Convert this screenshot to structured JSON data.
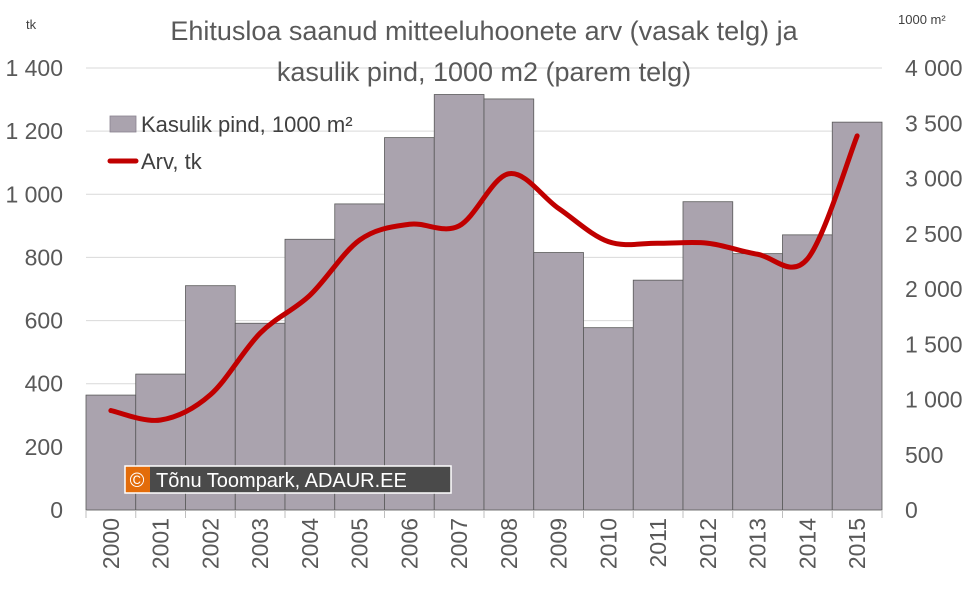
{
  "chart_data": {
    "type": "bar+line",
    "title_lines": [
      "Ehitusloa saanud mitteeluhoonete arv (vasak telg) ja",
      "kasulik pind, 1000 m2 (parem telg)"
    ],
    "left_axis_unit": "tk",
    "right_axis_unit": "1000 m²",
    "categories": [
      "2000",
      "2001",
      "2002",
      "2003",
      "2004",
      "2005",
      "2006",
      "2007",
      "2008",
      "2009",
      "2010",
      "2011",
      "2012",
      "2013",
      "2014",
      "2015"
    ],
    "y_left": {
      "min": 0,
      "max": 1400,
      "ticks": [
        0,
        200,
        400,
        600,
        800,
        1000,
        1200,
        1400
      ],
      "tick_labels": [
        "0",
        "200",
        "400",
        "600",
        "800",
        "1 000",
        "1 200",
        "1 400"
      ]
    },
    "y_right": {
      "min": 0,
      "max": 4000,
      "ticks": [
        0,
        500,
        1000,
        1500,
        2000,
        2500,
        3000,
        3500,
        4000
      ],
      "tick_labels": [
        "0",
        "500",
        "1 000",
        "1 500",
        "2 000",
        "2 500",
        "3 000",
        "3 500",
        "4 000"
      ]
    },
    "grid": true,
    "legend_position": "top-left",
    "series": [
      {
        "name": "Kasulik pind, 1000 m²",
        "type": "bar",
        "axis": "right",
        "color": "#aaa3ae",
        "values": [
          1040,
          1230,
          2030,
          1690,
          2450,
          2770,
          3370,
          3760,
          3720,
          2330,
          1650,
          2080,
          2790,
          2320,
          2490,
          3510
        ]
      },
      {
        "name": "Arv, tk",
        "type": "line",
        "axis": "left",
        "color": "#c00000",
        "values": [
          315,
          285,
          365,
          560,
          680,
          855,
          905,
          900,
          1065,
          955,
          850,
          845,
          845,
          810,
          795,
          1185
        ]
      }
    ]
  },
  "watermark": {
    "symbol": "©",
    "text": "Tõnu Toompark, ADAUR.EE"
  },
  "colors": {
    "grid": "#d9d9d9",
    "bar_border": "#595959",
    "badge": "#e36c0a",
    "badge_dark": "#4a4a4a"
  }
}
